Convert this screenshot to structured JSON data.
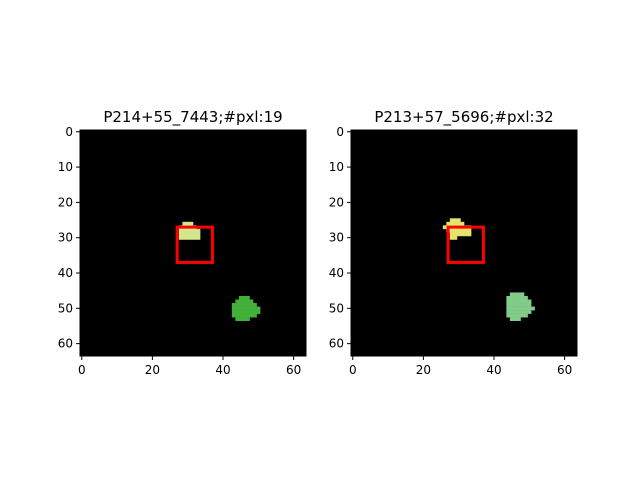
{
  "chart_data": [
    {
      "type": "heatmap",
      "title": "P214+55_7443;#pxl:19",
      "xlabel": "",
      "ylabel": "",
      "grid": false,
      "xlim": [
        -0.5,
        63.5
      ],
      "ylim": [
        63.5,
        -0.5
      ],
      "xticks": [
        0,
        20,
        40,
        60
      ],
      "yticks": [
        0,
        10,
        20,
        30,
        40,
        50,
        60
      ],
      "background_color": "#000000",
      "box": {
        "x0": 27,
        "y0": 27,
        "x1": 37,
        "y1": 37,
        "color": "#ff0000"
      },
      "blobs": [
        {
          "color": "#d4e68c",
          "runs": [
            [
              26,
              29,
              31
            ],
            [
              27,
              28,
              32
            ],
            [
              28,
              28,
              33
            ],
            [
              29,
              28,
              33
            ],
            [
              30,
              28,
              33
            ]
          ]
        },
        {
          "color": "#44b03c",
          "runs": [
            [
              47,
              45,
              47
            ],
            [
              48,
              44,
              48
            ],
            [
              49,
              43,
              49
            ],
            [
              50,
              43,
              50
            ],
            [
              51,
              43,
              50
            ],
            [
              52,
              43,
              49
            ],
            [
              53,
              44,
              47
            ]
          ]
        }
      ]
    },
    {
      "type": "heatmap",
      "title": "P213+57_5696;#pxl:32",
      "xlabel": "",
      "ylabel": "",
      "grid": false,
      "xlim": [
        -0.5,
        63.5
      ],
      "ylim": [
        63.5,
        -0.5
      ],
      "xticks": [
        0,
        20,
        40,
        60
      ],
      "yticks": [
        0,
        10,
        20,
        30,
        40,
        50,
        60
      ],
      "background_color": "#000000",
      "box": {
        "x0": 27,
        "y0": 27,
        "x1": 37,
        "y1": 37,
        "color": "#ff0000"
      },
      "blobs": [
        {
          "color": "#e6e26a",
          "runs": [
            [
              25,
              28,
              30
            ],
            [
              26,
              27,
              31
            ],
            [
              27,
              26,
              33
            ],
            [
              28,
              27,
              33
            ],
            [
              29,
              28,
              33
            ],
            [
              30,
              28,
              29
            ]
          ]
        },
        {
          "color": "#80cc88",
          "runs": [
            [
              46,
              45,
              48
            ],
            [
              47,
              44,
              49
            ],
            [
              48,
              44,
              50
            ],
            [
              49,
              44,
              50
            ],
            [
              50,
              44,
              51
            ],
            [
              51,
              44,
              50
            ],
            [
              52,
              44,
              49
            ],
            [
              53,
              45,
              47
            ]
          ]
        }
      ]
    }
  ]
}
